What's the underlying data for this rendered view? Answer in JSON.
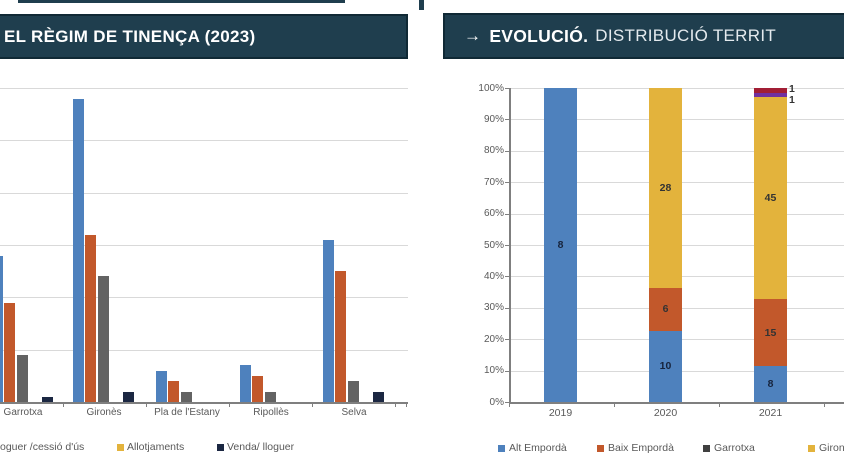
{
  "page": {
    "background": "#ffffff",
    "title_bar_color": "#1F3E4E",
    "title_bar_border": "#102935",
    "grid_color": "#D9D9D9",
    "axis_color": "#7F7F7F",
    "tick_text_color": "#595959"
  },
  "left_panel": {
    "title": "EL RÈGIM DE TINENÇA (2023)",
    "chart_data": {
      "type": "bar",
      "categories": [
        "Garrotxa",
        "Gironès",
        "Pla de l'Estany",
        "Ripollès",
        "Selva"
      ],
      "series": [
        {
          "name": "",
          "color": "#4E81BD",
          "values": [
            28,
            58,
            6,
            7,
            31
          ]
        },
        {
          "name": "",
          "color": "#C2582B",
          "values": [
            19,
            32,
            4,
            5,
            25
          ]
        },
        {
          "name": "oguer /cessió d'ús",
          "color": "#636363",
          "values": [
            9,
            24,
            2,
            2,
            4
          ]
        },
        {
          "name": "Allotjaments",
          "color": "#E3B33C",
          "values": [
            0,
            0,
            0,
            0,
            0
          ]
        },
        {
          "name": "Venda/ lloguer",
          "color": "#1B2742",
          "values": [
            1,
            2,
            0,
            0,
            2
          ]
        }
      ],
      "ylim": [
        0,
        60
      ],
      "grid_step": 10,
      "y_axis_labels_visible": false,
      "grid": true,
      "legend_position": "bottom"
    },
    "legend": [
      {
        "label": "oguer /cessió d'ús",
        "color": null
      },
      {
        "label": "Allotjaments",
        "color": "#E3B33C"
      },
      {
        "label": "Venda/ lloguer",
        "color": "#1B2742"
      }
    ]
  },
  "right_panel": {
    "title": {
      "arrow": "→",
      "strong": "EVOLUCIÓ.",
      "rest": "DISTRIBUCIÓ TERRIT"
    },
    "chart_data": {
      "type": "bar",
      "subtype": "stacked-100pct",
      "categories": [
        "2019",
        "2020",
        "2021"
      ],
      "series": [
        {
          "name": "Alt Empordà",
          "color": "#4E81BD",
          "values": [
            8,
            10,
            8
          ]
        },
        {
          "name": "Baix Empordà",
          "color": "#C2582B",
          "values": [
            0,
            6,
            15
          ]
        },
        {
          "name": "Garrotxa",
          "color": "#404040",
          "values": [
            0,
            0,
            0
          ]
        },
        {
          "name": "Gironès",
          "color": "#E3B33C",
          "values": [
            0,
            28,
            45
          ]
        },
        {
          "name": "",
          "color": "#7030A0",
          "values": [
            0,
            0,
            1
          ]
        },
        {
          "name": "",
          "color": "#A21E35",
          "values": [
            0,
            0,
            1
          ]
        }
      ],
      "y_ticks": [
        "0%",
        "10%",
        "20%",
        "30%",
        "40%",
        "50%",
        "60%",
        "70%",
        "80%",
        "90%",
        "100%"
      ],
      "ylim_percent": [
        0,
        100
      ],
      "grid": true,
      "legend_position": "bottom",
      "data_labels": true
    },
    "legend": [
      {
        "label": "Alt Empordà",
        "color": "#4E81BD"
      },
      {
        "label": "Baix Empordà",
        "color": "#C2582B"
      },
      {
        "label": "Garrotxa",
        "color": "#404040"
      },
      {
        "label": "Gironès",
        "color": "#E3B33C"
      }
    ]
  }
}
